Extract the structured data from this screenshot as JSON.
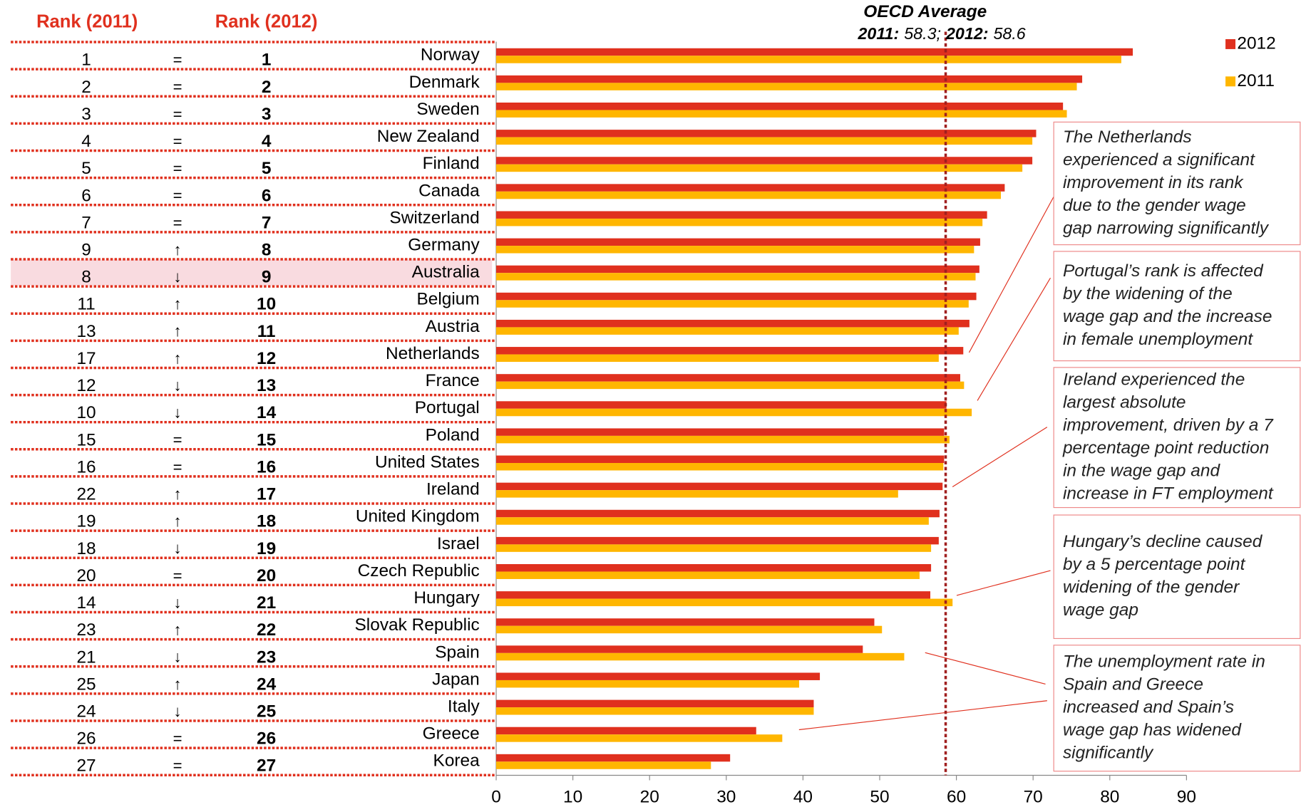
{
  "chart_data": {
    "type": "bar",
    "orientation": "horizontal",
    "categories": [
      "Norway",
      "Denmark",
      "Sweden",
      "New Zealand",
      "Finland",
      "Canada",
      "Switzerland",
      "Germany",
      "Australia",
      "Belgium",
      "Austria",
      "Netherlands",
      "France",
      "Portugal",
      "Poland",
      "United States",
      "Ireland",
      "United Kingdom",
      "Israel",
      "Czech Republic",
      "Hungary",
      "Slovak Republic",
      "Spain",
      "Japan",
      "Italy",
      "Greece",
      "Korea"
    ],
    "series": [
      {
        "name": "2012",
        "color": "#e0301e",
        "values": [
          83.0,
          76.4,
          73.9,
          70.4,
          69.9,
          66.3,
          64.0,
          63.1,
          63.0,
          62.6,
          61.7,
          60.9,
          60.5,
          58.7,
          58.4,
          58.4,
          58.2,
          57.8,
          57.7,
          56.7,
          56.6,
          49.3,
          47.8,
          42.2,
          41.4,
          33.9,
          30.5
        ]
      },
      {
        "name": "2011",
        "color": "#ffb600",
        "values": [
          81.5,
          75.7,
          74.4,
          69.9,
          68.6,
          65.8,
          63.4,
          62.3,
          62.5,
          61.6,
          60.3,
          57.7,
          61.0,
          62.0,
          59.1,
          58.3,
          52.4,
          56.4,
          56.7,
          55.2,
          59.5,
          50.3,
          53.2,
          39.5,
          41.4,
          37.3,
          28.0
        ]
      }
    ],
    "xlim": [
      0,
      90
    ],
    "xticks": [
      0,
      10,
      20,
      30,
      40,
      50,
      60,
      70,
      80,
      90
    ],
    "rank_table": {
      "headers": [
        "Rank (2011)",
        "Rank (2012)"
      ],
      "rank_2011": [
        1,
        2,
        3,
        4,
        5,
        6,
        7,
        9,
        8,
        11,
        13,
        17,
        12,
        10,
        15,
        16,
        22,
        19,
        18,
        20,
        14,
        23,
        21,
        25,
        24,
        26,
        27
      ],
      "change": [
        "=",
        "=",
        "=",
        "=",
        "=",
        "=",
        "=",
        "↑",
        "↓",
        "↑",
        "↑",
        "↑",
        "↓",
        "↓",
        "=",
        "=",
        "↑",
        "↑",
        "↓",
        "=",
        "↓",
        "↑",
        "↓",
        "↑",
        "↓",
        "=",
        "="
      ],
      "rank_2012": [
        1,
        2,
        3,
        4,
        5,
        6,
        7,
        8,
        9,
        10,
        11,
        12,
        13,
        14,
        15,
        16,
        17,
        18,
        19,
        20,
        21,
        22,
        23,
        24,
        25,
        26,
        27
      ]
    },
    "highlight": "Australia",
    "oecd_average": {
      "title": "OECD Average",
      "label_2011": "2011:",
      "value_2011": 58.3,
      "label_2012": "2012:",
      "value_2012": 58.6,
      "value_labels": [
        "58.3;",
        "58.6"
      ]
    },
    "annotations": [
      {
        "lines": [
          "The Netherlands",
          "experienced a significant",
          "improvement in its rank",
          "due to the gender wage",
          "gap narrowing significantly"
        ]
      },
      {
        "lines": [
          "Portugal’s rank is affected",
          "by the widening of the",
          "wage gap and the increase",
          "in female unemployment"
        ]
      },
      {
        "lines": [
          "Ireland experienced the",
          "largest absolute",
          "improvement, driven by a 7",
          "percentage point reduction",
          "in the wage gap and",
          "increase in FT employment"
        ]
      },
      {
        "lines": [
          "Hungary’s decline caused",
          "by a 5 percentage point",
          "widening of the gender",
          "wage gap"
        ]
      },
      {
        "lines": [
          "The unemployment rate in",
          "Spain and Greece",
          "increased and Spain’s",
          "wage gap has widened",
          "significantly"
        ]
      }
    ]
  }
}
